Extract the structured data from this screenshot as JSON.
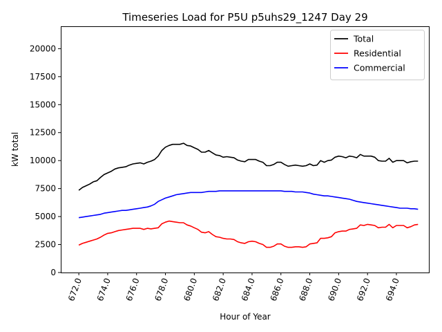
{
  "chart_data": {
    "type": "line",
    "title": "Timeseries Load for P5U p5uhs29_1247  Day 29",
    "xlabel": "Hour of Year",
    "ylabel": "kW total",
    "xlim": [
      670.75,
      696.25
    ],
    "ylim": [
      0,
      22000
    ],
    "xticks": [
      672,
      674,
      676,
      678,
      680,
      682,
      684,
      686,
      688,
      690,
      692,
      694
    ],
    "xtick_labels": [
      "672.0",
      "674.0",
      "676.0",
      "678.0",
      "680.0",
      "682.0",
      "684.0",
      "686.0",
      "688.0",
      "690.0",
      "692.0",
      "694.0"
    ],
    "yticks": [
      0,
      2500,
      5000,
      7500,
      10000,
      12500,
      15000,
      17500,
      20000
    ],
    "ytick_labels": [
      "0",
      "2500",
      "5000",
      "7500",
      "10000",
      "12500",
      "15000",
      "17500",
      "20000"
    ],
    "legend_position": "top-right",
    "x_start": 672,
    "x_step": 0.25,
    "series": [
      {
        "name": "Total",
        "color": "#000000",
        "values": [
          7350,
          7600,
          7750,
          7900,
          8100,
          8200,
          8500,
          8750,
          8900,
          9050,
          9250,
          9350,
          9400,
          9450,
          9600,
          9700,
          9750,
          9800,
          9700,
          9850,
          9950,
          10100,
          10400,
          10900,
          11200,
          11350,
          11450,
          11450,
          11450,
          11550,
          11350,
          11300,
          11150,
          11000,
          10750,
          10750,
          10900,
          10700,
          10500,
          10450,
          10300,
          10350,
          10300,
          10250,
          10050,
          9950,
          9900,
          10100,
          10100,
          10100,
          9950,
          9850,
          9550,
          9550,
          9650,
          9850,
          9850,
          9650,
          9500,
          9550,
          9600,
          9550,
          9500,
          9550,
          9700,
          9550,
          9600,
          10000,
          9850,
          10000,
          10050,
          10300,
          10400,
          10350,
          10250,
          10400,
          10350,
          10250,
          10550,
          10400,
          10400,
          10400,
          10300,
          10000,
          9950,
          9950,
          10200,
          9850,
          10000,
          10000,
          10000,
          9800,
          9900,
          9950,
          9950
        ]
      },
      {
        "name": "Residential",
        "color": "#ff0000",
        "values": [
          2450,
          2600,
          2700,
          2800,
          2900,
          3000,
          3150,
          3350,
          3500,
          3550,
          3650,
          3750,
          3800,
          3850,
          3900,
          3950,
          3950,
          3950,
          3850,
          3950,
          3900,
          3950,
          4000,
          4350,
          4500,
          4600,
          4550,
          4500,
          4450,
          4450,
          4250,
          4150,
          4000,
          3850,
          3600,
          3550,
          3650,
          3400,
          3200,
          3150,
          3050,
          3000,
          3000,
          2950,
          2750,
          2650,
          2600,
          2750,
          2800,
          2750,
          2600,
          2500,
          2250,
          2250,
          2350,
          2550,
          2550,
          2350,
          2250,
          2250,
          2300,
          2300,
          2250,
          2300,
          2550,
          2600,
          2650,
          3050,
          3050,
          3100,
          3200,
          3550,
          3650,
          3700,
          3700,
          3850,
          3900,
          3950,
          4250,
          4200,
          4300,
          4250,
          4200,
          4000,
          4050,
          4050,
          4300,
          4000,
          4200,
          4200,
          4200,
          4000,
          4100,
          4250,
          4300
        ]
      },
      {
        "name": "Commercial",
        "color": "#0000ff",
        "values": [
          4900,
          4950,
          5000,
          5050,
          5100,
          5150,
          5200,
          5300,
          5350,
          5400,
          5450,
          5500,
          5550,
          5550,
          5600,
          5650,
          5700,
          5750,
          5800,
          5850,
          5950,
          6100,
          6350,
          6500,
          6650,
          6750,
          6850,
          6950,
          7000,
          7050,
          7100,
          7150,
          7150,
          7150,
          7150,
          7200,
          7250,
          7250,
          7250,
          7300,
          7300,
          7300,
          7300,
          7300,
          7300,
          7300,
          7300,
          7300,
          7300,
          7300,
          7300,
          7300,
          7300,
          7300,
          7300,
          7300,
          7300,
          7250,
          7250,
          7250,
          7200,
          7200,
          7200,
          7150,
          7100,
          7000,
          6950,
          6900,
          6850,
          6850,
          6800,
          6750,
          6700,
          6650,
          6600,
          6550,
          6450,
          6350,
          6300,
          6250,
          6200,
          6150,
          6100,
          6050,
          6000,
          5950,
          5900,
          5850,
          5800,
          5750,
          5750,
          5750,
          5700,
          5700,
          5650
        ]
      }
    ]
  }
}
